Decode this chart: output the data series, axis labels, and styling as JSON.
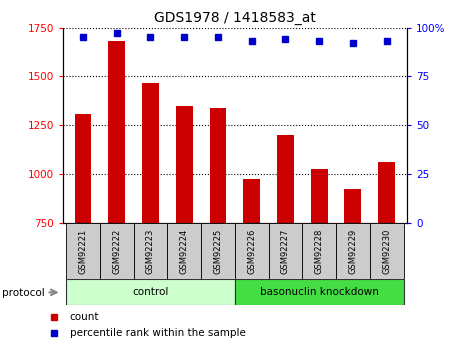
{
  "title": "GDS1978 / 1418583_at",
  "samples": [
    "GSM92221",
    "GSM92222",
    "GSM92223",
    "GSM92224",
    "GSM92225",
    "GSM92226",
    "GSM92227",
    "GSM92228",
    "GSM92229",
    "GSM92230"
  ],
  "counts": [
    1305,
    1680,
    1465,
    1350,
    1335,
    975,
    1200,
    1025,
    920,
    1060
  ],
  "percentile_ranks": [
    95,
    97,
    95,
    95,
    95,
    93,
    94,
    93,
    92,
    93
  ],
  "bar_color": "#cc0000",
  "dot_color": "#0000cc",
  "ylim_left": [
    750,
    1750
  ],
  "ylim_right": [
    0,
    100
  ],
  "yticks_left": [
    750,
    1000,
    1250,
    1500,
    1750
  ],
  "yticks_right": [
    0,
    25,
    50,
    75,
    100
  ],
  "ytick_labels_right": [
    "0",
    "25",
    "50",
    "75",
    "100%"
  ],
  "groups": [
    {
      "label": "control",
      "indices": [
        0,
        1,
        2,
        3,
        4
      ],
      "color": "#ccffcc"
    },
    {
      "label": "basonuclin knockdown",
      "indices": [
        5,
        6,
        7,
        8,
        9
      ],
      "color": "#44dd44"
    }
  ],
  "protocol_label": "protocol",
  "legend_items": [
    {
      "label": "count",
      "color": "#cc0000"
    },
    {
      "label": "percentile rank within the sample",
      "color": "#0000cc"
    }
  ],
  "grid_color": "black",
  "sample_box_color": "#cccccc",
  "bar_width": 0.5
}
